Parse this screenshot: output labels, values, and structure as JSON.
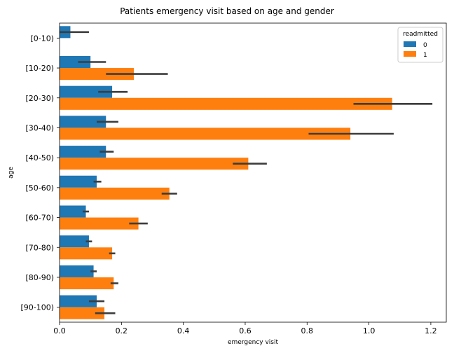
{
  "chart_data": {
    "type": "bar",
    "orientation": "horizontal",
    "title": "Patients emergency visit based on age and gender",
    "xlabel": "emergency visit",
    "ylabel": "age",
    "categories": [
      "[0-10)",
      "[10-20)",
      "[20-30)",
      "[30-40)",
      "[40-50)",
      "[50-60)",
      "[60-70)",
      "[70-80)",
      "[80-90)",
      "[90-100)"
    ],
    "xlim": [
      0,
      1.25
    ],
    "xticks": [
      0.0,
      0.2,
      0.4,
      0.6,
      0.8,
      1.0,
      1.2
    ],
    "xtick_labels": [
      "0.0",
      "0.2",
      "0.4",
      "0.6",
      "0.8",
      "1.0",
      "1.2"
    ],
    "grid": false,
    "legend": {
      "title": "readmitted",
      "placement": "top-right"
    },
    "series": [
      {
        "name": "0",
        "color": "#1f77b4",
        "values": [
          0.035,
          0.1,
          0.17,
          0.15,
          0.15,
          0.12,
          0.085,
          0.095,
          0.11,
          0.12
        ],
        "ci": [
          [
            0.0,
            0.095
          ],
          [
            0.06,
            0.15
          ],
          [
            0.125,
            0.22
          ],
          [
            0.12,
            0.19
          ],
          [
            0.13,
            0.175
          ],
          [
            0.11,
            0.135
          ],
          [
            0.075,
            0.095
          ],
          [
            0.085,
            0.105
          ],
          [
            0.1,
            0.12
          ],
          [
            0.095,
            0.145
          ]
        ]
      },
      {
        "name": "1",
        "color": "#ff7f0e",
        "values": [
          null,
          0.24,
          1.075,
          0.94,
          0.61,
          0.355,
          0.255,
          0.17,
          0.175,
          0.145
        ],
        "ci": [
          null,
          [
            0.15,
            0.35
          ],
          [
            0.95,
            1.205
          ],
          [
            0.805,
            1.08
          ],
          [
            0.56,
            0.67
          ],
          [
            0.33,
            0.38
          ],
          [
            0.225,
            0.285
          ],
          [
            0.16,
            0.18
          ],
          [
            0.165,
            0.19
          ],
          [
            0.115,
            0.18
          ]
        ]
      }
    ]
  }
}
